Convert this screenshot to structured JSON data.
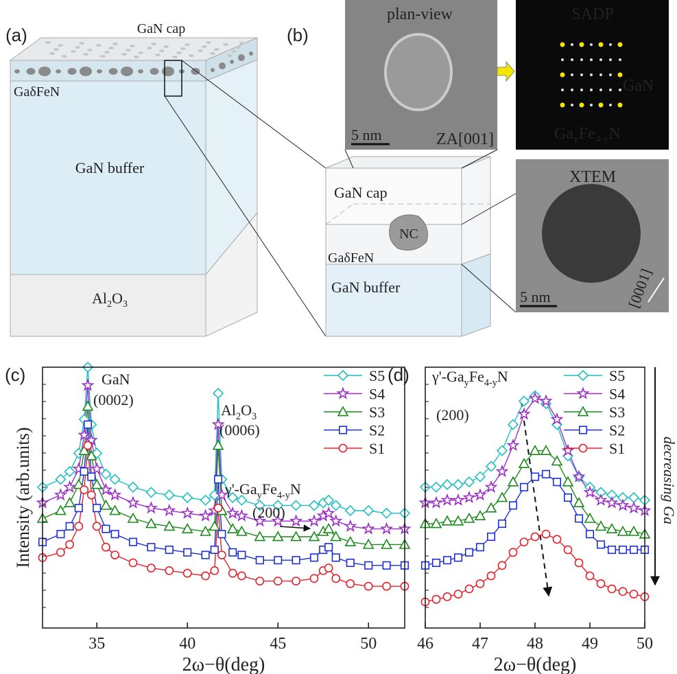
{
  "figure": {
    "a": {
      "label": "(a)",
      "cap": "GaN cap",
      "layer": "GaδFeN",
      "buffer": "GaN buffer",
      "substrate": {
        "parts": [
          "Al",
          "2",
          "O",
          "3"
        ]
      }
    },
    "b": {
      "label": "(b)",
      "plan_view": "plan-view",
      "scale_1": "5 nm",
      "zone": "ZA[001]",
      "sadp": "SADP",
      "gan": "GaN",
      "phase": {
        "parts": [
          "Ga",
          "y",
          "Fe",
          "4-y",
          "N"
        ]
      },
      "cap": "GaN cap",
      "nc": "NC",
      "layer": "GaδFeN",
      "buffer": "GaN buffer",
      "xtem": "XTEM",
      "scale_2": "5 nm",
      "direction": "[0001]"
    }
  },
  "chart_data": [
    {
      "type": "line",
      "panel": "(c)",
      "xlabel": "2ω−θ(deg)",
      "ylabel": "Intensity (arb.units)",
      "xlim": [
        32,
        52
      ],
      "xticks": [
        35,
        40,
        45,
        50
      ],
      "ylim": [
        0,
        100
      ],
      "log_scale_y": true,
      "annotations": [
        {
          "text": "GaN"
        },
        {
          "text": "(0002)"
        },
        {
          "parts": [
            "Al",
            "2",
            "O",
            "3"
          ]
        },
        {
          "text": "(0006)"
        },
        {
          "parts": [
            "γ'-Ga",
            "y",
            "Fe",
            "4-y",
            "N"
          ]
        },
        {
          "text": "(200)"
        }
      ],
      "x": [
        32,
        33,
        33.5,
        34,
        34.3,
        34.5,
        34.7,
        35,
        35.5,
        36,
        37,
        38,
        39,
        40,
        41,
        41.5,
        41.7,
        41.9,
        42.5,
        43,
        44,
        45,
        46,
        47,
        47.5,
        47.8,
        48.2,
        49,
        50,
        51,
        52
      ],
      "legend": "upper right",
      "series": [
        {
          "name": "S5",
          "color": "#1fbfc4",
          "marker": "diamond",
          "values": [
            54,
            57,
            60,
            67,
            80,
            100,
            78,
            67,
            59,
            57,
            54,
            52,
            51,
            50,
            49,
            51,
            90,
            57,
            50,
            49,
            47,
            47,
            47,
            47,
            48,
            49,
            47,
            45,
            45,
            44,
            44
          ]
        },
        {
          "name": "S4",
          "color": "#9a2fc6",
          "marker": "star",
          "values": [
            48,
            51,
            54,
            61,
            74,
            93,
            72,
            61,
            53,
            51,
            48,
            46,
            45,
            44,
            43,
            45,
            78,
            51,
            44,
            43,
            41,
            41,
            41,
            41,
            43,
            44,
            41,
            39,
            38,
            38,
            38
          ]
        },
        {
          "name": "S3",
          "color": "#1b8a1b",
          "marker": "triangle",
          "values": [
            42,
            45,
            48,
            55,
            68,
            85,
            66,
            55,
            47,
            45,
            42,
            40,
            39,
            38,
            37,
            39,
            70,
            45,
            38,
            37,
            35,
            35,
            35,
            35,
            37,
            38,
            35,
            33,
            32,
            32,
            32
          ]
        },
        {
          "name": "S2",
          "color": "#1a2fd8",
          "marker": "square",
          "values": [
            33,
            36,
            39,
            46,
            60,
            78,
            58,
            46,
            38,
            36,
            33,
            31,
            30,
            29,
            28,
            30,
            57,
            36,
            29,
            28,
            26,
            26,
            26,
            27,
            30,
            31,
            27,
            25,
            24,
            24,
            24
          ]
        },
        {
          "name": "S1",
          "color": "#e5202a",
          "marker": "circle",
          "values": [
            27,
            29,
            32,
            39,
            53,
            70,
            51,
            39,
            31,
            28,
            25,
            23,
            22,
            21,
            20,
            22,
            46,
            28,
            21,
            20,
            18,
            18,
            18,
            19,
            22,
            23,
            19,
            17,
            16,
            16,
            16
          ]
        }
      ]
    },
    {
      "type": "line",
      "panel": "(d)",
      "xlabel": "2ω−θ(deg)",
      "side_label": "decreasing Ga",
      "xlim": [
        46,
        50
      ],
      "xticks": [
        46,
        47,
        48,
        49,
        50
      ],
      "ylim": [
        0,
        100
      ],
      "log_scale_y": true,
      "annotations": [
        {
          "parts": [
            "γ'-Ga",
            "y",
            "Fe",
            "4-y",
            "N"
          ]
        },
        {
          "text": "(200)"
        }
      ],
      "x": [
        46,
        46.2,
        46.4,
        46.6,
        46.8,
        47,
        47.2,
        47.4,
        47.6,
        47.8,
        48,
        48.2,
        48.4,
        48.6,
        48.8,
        49,
        49.2,
        49.4,
        49.6,
        49.8,
        50
      ],
      "legend": "upper right",
      "series": [
        {
          "name": "S5",
          "color": "#1fbfc4",
          "marker": "diamond",
          "values": [
            54,
            54,
            55,
            55,
            56,
            58,
            62,
            68,
            78,
            87,
            89,
            86,
            78,
            66,
            58,
            54,
            52,
            51,
            50,
            50,
            49
          ]
        },
        {
          "name": "S4",
          "color": "#9a2fc6",
          "marker": "star",
          "values": [
            48,
            48,
            49,
            49,
            50,
            51,
            54,
            60,
            70,
            82,
            88,
            87,
            80,
            68,
            58,
            52,
            49,
            48,
            47,
            46,
            45
          ]
        },
        {
          "name": "S3",
          "color": "#1b8a1b",
          "marker": "triangle",
          "values": [
            40,
            40,
            41,
            41,
            42,
            43,
            46,
            50,
            56,
            63,
            68,
            68,
            64,
            56,
            48,
            42,
            39,
            38,
            37,
            37,
            36
          ]
        },
        {
          "name": "S2",
          "color": "#1a2fd8",
          "marker": "square",
          "values": [
            24,
            25,
            26,
            27,
            29,
            31,
            35,
            40,
            47,
            54,
            58,
            59,
            56,
            50,
            42,
            36,
            32,
            30,
            30,
            30,
            30
          ]
        },
        {
          "name": "S1",
          "color": "#e5202a",
          "marker": "circle",
          "values": [
            10,
            11,
            12,
            13,
            15,
            17,
            20,
            24,
            29,
            33,
            35,
            36,
            34,
            30,
            25,
            20,
            17,
            15,
            14,
            13,
            12
          ]
        }
      ]
    }
  ]
}
